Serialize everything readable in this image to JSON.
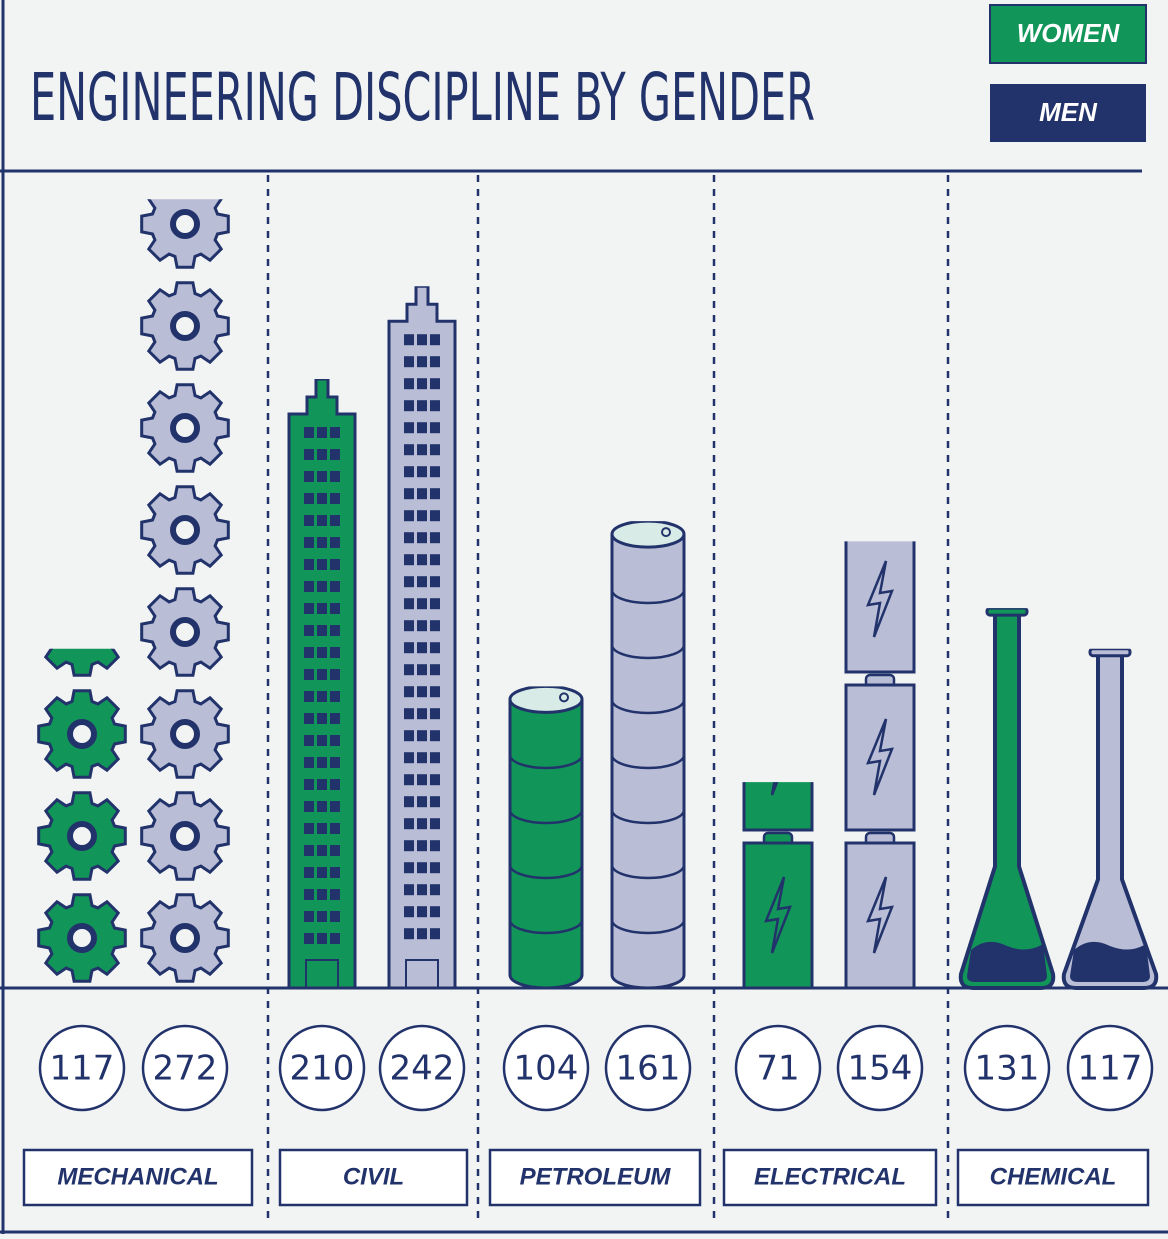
{
  "chart_data": {
    "type": "pictograph",
    "title": "ENGINEERING DISCIPLINE BY GENDER",
    "categories": [
      "MECHANICAL",
      "CIVIL",
      "PETROLEUM",
      "ELECTRICAL",
      "CHEMICAL"
    ],
    "series": [
      {
        "name": "WOMEN",
        "color": "#119558",
        "values": [
          117,
          210,
          104,
          71,
          131
        ]
      },
      {
        "name": "MEN",
        "color": "#b9bdd6",
        "values": [
          272,
          242,
          161,
          154,
          117
        ]
      }
    ]
  }
}
